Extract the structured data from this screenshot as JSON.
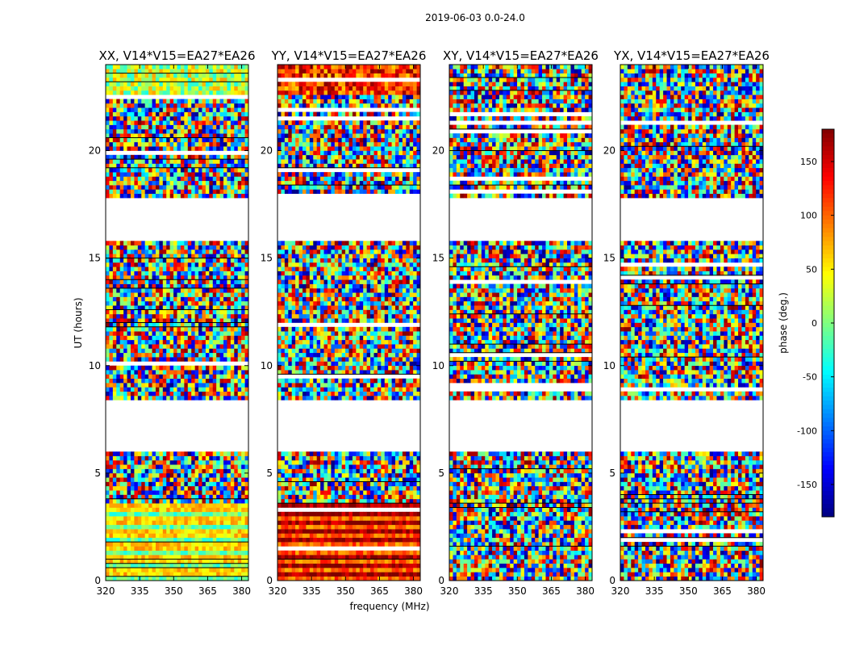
{
  "figure": {
    "suptitle": "2019-06-03 0.0-24.0",
    "ylabel": "UT (hours)",
    "xlabel": "frequency (MHz)"
  },
  "chart_data": {
    "type": "heatmap",
    "xlim": [
      320,
      383
    ],
    "ylim": [
      0,
      24
    ],
    "xticks": [
      320,
      335,
      350,
      365,
      380
    ],
    "yticks": [
      0,
      5,
      10,
      15,
      20
    ],
    "panels": [
      {
        "title": "XX, V14*V15=EA27*EA26",
        "pol": "XX"
      },
      {
        "title": "YY, V14*V15=EA27*EA26",
        "pol": "YY"
      },
      {
        "title": "XY, V14*V15=EA27*EA26",
        "pol": "XY"
      },
      {
        "title": "YX, V14*V15=EA27*EA26",
        "pol": "YX"
      }
    ],
    "data_gaps_hours": [
      [
        6.0,
        8.4
      ],
      [
        15.8,
        17.9
      ]
    ],
    "colorbar": {
      "label": "phase (deg.)",
      "range": [
        -180,
        180
      ],
      "ticks": [
        150,
        100,
        50,
        0,
        -50,
        -100,
        -150
      ],
      "colormap": "jet"
    }
  }
}
